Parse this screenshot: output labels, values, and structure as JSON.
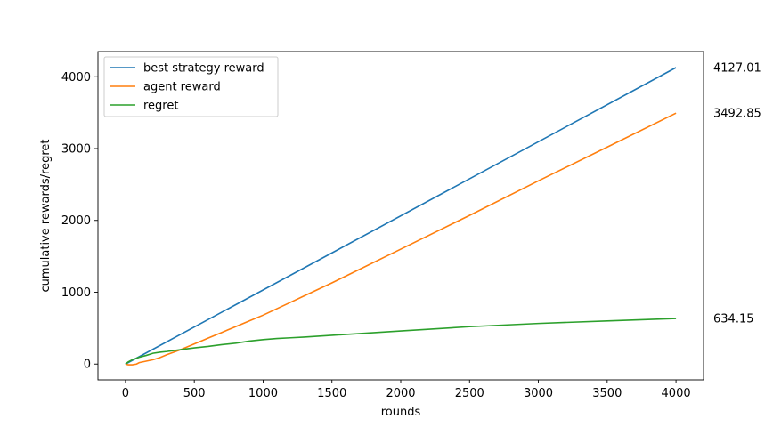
{
  "chart_data": {
    "type": "line",
    "xlabel": "rounds",
    "ylabel": "cumulative rewards/regret",
    "xlim": [
      -200,
      4200
    ],
    "ylim": [
      -220,
      4350
    ],
    "xticks": [
      0,
      500,
      1000,
      1500,
      2000,
      2500,
      3000,
      3500,
      4000
    ],
    "yticks": [
      0,
      1000,
      2000,
      3000,
      4000
    ],
    "legend_position": "top-left",
    "grid": false,
    "series": [
      {
        "name": "best strategy reward",
        "color": "#1f77b4",
        "x": [
          0,
          4000
        ],
        "y": [
          0,
          4127.01
        ]
      },
      {
        "name": "agent reward",
        "color": "#ff7f0e",
        "x": [
          0,
          20,
          50,
          80,
          100,
          150,
          200,
          250,
          300,
          400,
          500,
          600,
          700,
          800,
          900,
          1000,
          1100,
          1200,
          1300,
          1500,
          2000,
          2500,
          3000,
          3500,
          4000
        ],
        "y": [
          0,
          -10,
          -10,
          0,
          20,
          40,
          60,
          90,
          130,
          200,
          280,
          360,
          440,
          520,
          600,
          680,
          770,
          860,
          950,
          1130,
          1600,
          2070,
          2550,
          3020,
          3492.85
        ]
      },
      {
        "name": "regret",
        "color": "#2ca02c",
        "x": [
          0,
          20,
          50,
          80,
          100,
          150,
          200,
          250,
          300,
          400,
          500,
          600,
          700,
          800,
          900,
          1000,
          1100,
          1200,
          1300,
          1500,
          2000,
          2500,
          3000,
          3500,
          4000
        ],
        "y": [
          0,
          30,
          60,
          80,
          95,
          120,
          150,
          165,
          175,
          200,
          225,
          245,
          270,
          290,
          320,
          340,
          355,
          365,
          375,
          400,
          460,
          520,
          565,
          600,
          634.15
        ]
      }
    ],
    "end_labels": [
      "4127.01",
      "3492.85",
      "634.15"
    ]
  }
}
